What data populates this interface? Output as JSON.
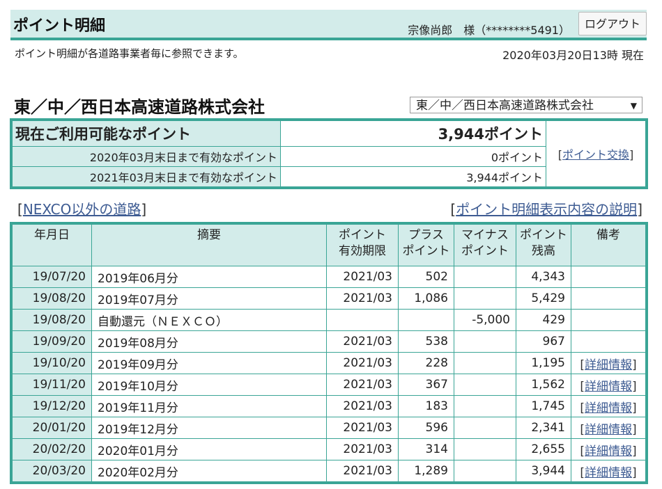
{
  "header": {
    "title": "ポイント明細",
    "user": "宗像尚郎　様（********5491）",
    "logout_label": "ログアウト"
  },
  "subline": "ポイント明細が各道路事業者毎に参照できます。",
  "timestamp": "2020年03月20日13時 現在",
  "company": {
    "title": "東／中／西日本高速道路株式会社",
    "select_value": "東／中／西日本高速道路株式会社",
    "select_arrow": "▼"
  },
  "summary": {
    "current_label": "現在ご利用可能なポイント",
    "current_value": "3,944ポイント",
    "row1_label": "2020年03月末日まで有効なポイント",
    "row1_value": "0ポイント",
    "row2_label": "2021年03月末日まで有効なポイント",
    "row2_value": "3,944ポイント",
    "exchange_link": "ポイント交換"
  },
  "links": {
    "nexco_other": "NEXCO以外の道路",
    "explanation": "ポイント明細表示内容の説明",
    "bracket_open": "[",
    "bracket_close": "]"
  },
  "table": {
    "headers": {
      "date": "年月日",
      "summary": "摘要",
      "expiry_1": "ポイント",
      "expiry_2": "有効期限",
      "plus_1": "プラス",
      "plus_2": "ポイント",
      "minus_1": "マイナス",
      "minus_2": "ポイント",
      "balance_1": "ポイント",
      "balance_2": "残高",
      "remarks": "備考"
    },
    "rows": [
      {
        "date": "19/07/20",
        "summary": "2019年06月分",
        "expiry": "2021/03",
        "plus": "502",
        "minus": "",
        "balance": "4,343",
        "remark": ""
      },
      {
        "date": "19/08/20",
        "summary": "2019年07月分",
        "expiry": "2021/03",
        "plus": "1,086",
        "minus": "",
        "balance": "5,429",
        "remark": ""
      },
      {
        "date": "19/08/20",
        "summary": "自動還元（ＮＥＸＣＯ）",
        "expiry": "",
        "plus": "",
        "minus": "-5,000",
        "balance": "429",
        "remark": ""
      },
      {
        "date": "19/09/20",
        "summary": "2019年08月分",
        "expiry": "2021/03",
        "plus": "538",
        "minus": "",
        "balance": "967",
        "remark": ""
      },
      {
        "date": "19/10/20",
        "summary": "2019年09月分",
        "expiry": "2021/03",
        "plus": "228",
        "minus": "",
        "balance": "1,195",
        "remark": "詳細情報"
      },
      {
        "date": "19/11/20",
        "summary": "2019年10月分",
        "expiry": "2021/03",
        "plus": "367",
        "minus": "",
        "balance": "1,562",
        "remark": "詳細情報"
      },
      {
        "date": "19/12/20",
        "summary": "2019年11月分",
        "expiry": "2021/03",
        "plus": "183",
        "minus": "",
        "balance": "1,745",
        "remark": "詳細情報"
      },
      {
        "date": "20/01/20",
        "summary": "2019年12月分",
        "expiry": "2021/03",
        "plus": "596",
        "minus": "",
        "balance": "2,341",
        "remark": "詳細情報"
      },
      {
        "date": "20/02/20",
        "summary": "2020年01月分",
        "expiry": "2021/03",
        "plus": "314",
        "minus": "",
        "balance": "2,655",
        "remark": "詳細情報"
      },
      {
        "date": "20/03/20",
        "summary": "2020年02月分",
        "expiry": "2021/03",
        "plus": "1,289",
        "minus": "",
        "balance": "3,944",
        "remark": "詳細情報"
      }
    ]
  },
  "colors": {
    "accent_border": "#3aa596",
    "header_bg": "#d3ecea",
    "link": "#3d5b92"
  }
}
